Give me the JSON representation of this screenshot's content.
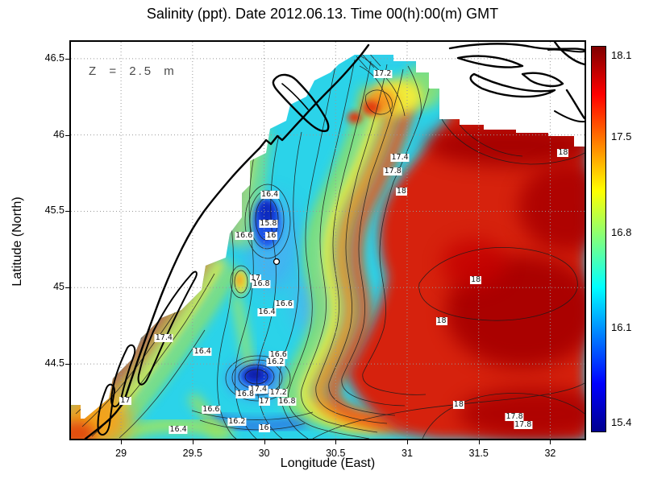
{
  "title": "Salinity (ppt). Date 2012.06.13. Time 00(h):00(m) GMT",
  "annotation": "Z = 2.5 m",
  "axes": {
    "xlabel": "Longitude (East)",
    "ylabel": "Latitude (North)",
    "x_ticks": [
      29,
      29.5,
      30,
      30.5,
      31,
      31.5,
      32
    ],
    "y_ticks": [
      46.5,
      46,
      45.5,
      45,
      44.5
    ],
    "x_range": [
      28.65,
      32.24
    ],
    "y_range": [
      44.01,
      46.61
    ]
  },
  "colorbar": {
    "min": 15.4,
    "max": 18.1,
    "ticks": [
      18.1,
      17.5,
      16.8,
      16.1,
      15.4
    ],
    "colormap": "jet",
    "colors_top_to_bottom": [
      "#7f0000",
      "#ff0000",
      "#ff7f00",
      "#ffff00",
      "#7fff7f",
      "#00ffff",
      "#007fff",
      "#0000ff",
      "#00008f"
    ]
  },
  "chart_data": {
    "type": "heatmap",
    "title": "Salinity (ppt). Date 2012.06.13. Time 00(h):00(m) GMT",
    "value_label": "Salinity (ppt)",
    "depth_annotation": "Z = 2.5 m",
    "xlabel": "Longitude (East)",
    "ylabel": "Latitude (North)",
    "xlim": [
      28.65,
      32.24
    ],
    "ylim": [
      44.01,
      46.61
    ],
    "colorbar_range": [
      15.4,
      18.1
    ],
    "colormap": "jet",
    "contour_interval": 0.2,
    "grid": true,
    "contour_labels": [
      {
        "lon": 30.83,
        "lat": 46.4,
        "value": "17.2"
      },
      {
        "lon": 32.09,
        "lat": 45.88,
        "value": "18"
      },
      {
        "lon": 30.95,
        "lat": 45.85,
        "value": "17.4"
      },
      {
        "lon": 30.9,
        "lat": 45.76,
        "value": "17.8"
      },
      {
        "lon": 30.96,
        "lat": 45.63,
        "value": "18"
      },
      {
        "lon": 30.04,
        "lat": 45.61,
        "value": "16.4"
      },
      {
        "lon": 30.03,
        "lat": 45.42,
        "value": "15.8"
      },
      {
        "lon": 30.05,
        "lat": 45.34,
        "value": "16"
      },
      {
        "lon": 29.86,
        "lat": 45.34,
        "value": "16.6"
      },
      {
        "lon": 29.94,
        "lat": 45.06,
        "value": "17"
      },
      {
        "lon": 29.98,
        "lat": 45.02,
        "value": "16.8"
      },
      {
        "lon": 31.48,
        "lat": 45.05,
        "value": "18"
      },
      {
        "lon": 30.14,
        "lat": 44.89,
        "value": "16.6"
      },
      {
        "lon": 30.02,
        "lat": 44.84,
        "value": "16.4"
      },
      {
        "lon": 31.24,
        "lat": 44.78,
        "value": "18"
      },
      {
        "lon": 29.3,
        "lat": 44.67,
        "value": "17.4"
      },
      {
        "lon": 29.57,
        "lat": 44.58,
        "value": "16.4"
      },
      {
        "lon": 30.1,
        "lat": 44.56,
        "value": "16.6"
      },
      {
        "lon": 30.08,
        "lat": 44.51,
        "value": "16.2"
      },
      {
        "lon": 29.96,
        "lat": 44.33,
        "value": "17.4"
      },
      {
        "lon": 30.1,
        "lat": 44.31,
        "value": "17.2"
      },
      {
        "lon": 29.87,
        "lat": 44.3,
        "value": "16.8"
      },
      {
        "lon": 30.0,
        "lat": 44.25,
        "value": "17"
      },
      {
        "lon": 30.16,
        "lat": 44.25,
        "value": "16.8"
      },
      {
        "lon": 29.03,
        "lat": 44.26,
        "value": "17"
      },
      {
        "lon": 31.36,
        "lat": 44.23,
        "value": "18"
      },
      {
        "lon": 29.63,
        "lat": 44.2,
        "value": "16.6"
      },
      {
        "lon": 31.75,
        "lat": 44.15,
        "value": "17.8"
      },
      {
        "lon": 29.81,
        "lat": 44.12,
        "value": "16.2"
      },
      {
        "lon": 31.81,
        "lat": 44.1,
        "value": "17.8"
      },
      {
        "lon": 30.0,
        "lat": 44.08,
        "value": "16"
      },
      {
        "lon": 29.4,
        "lat": 44.07,
        "value": "16.4"
      }
    ]
  }
}
